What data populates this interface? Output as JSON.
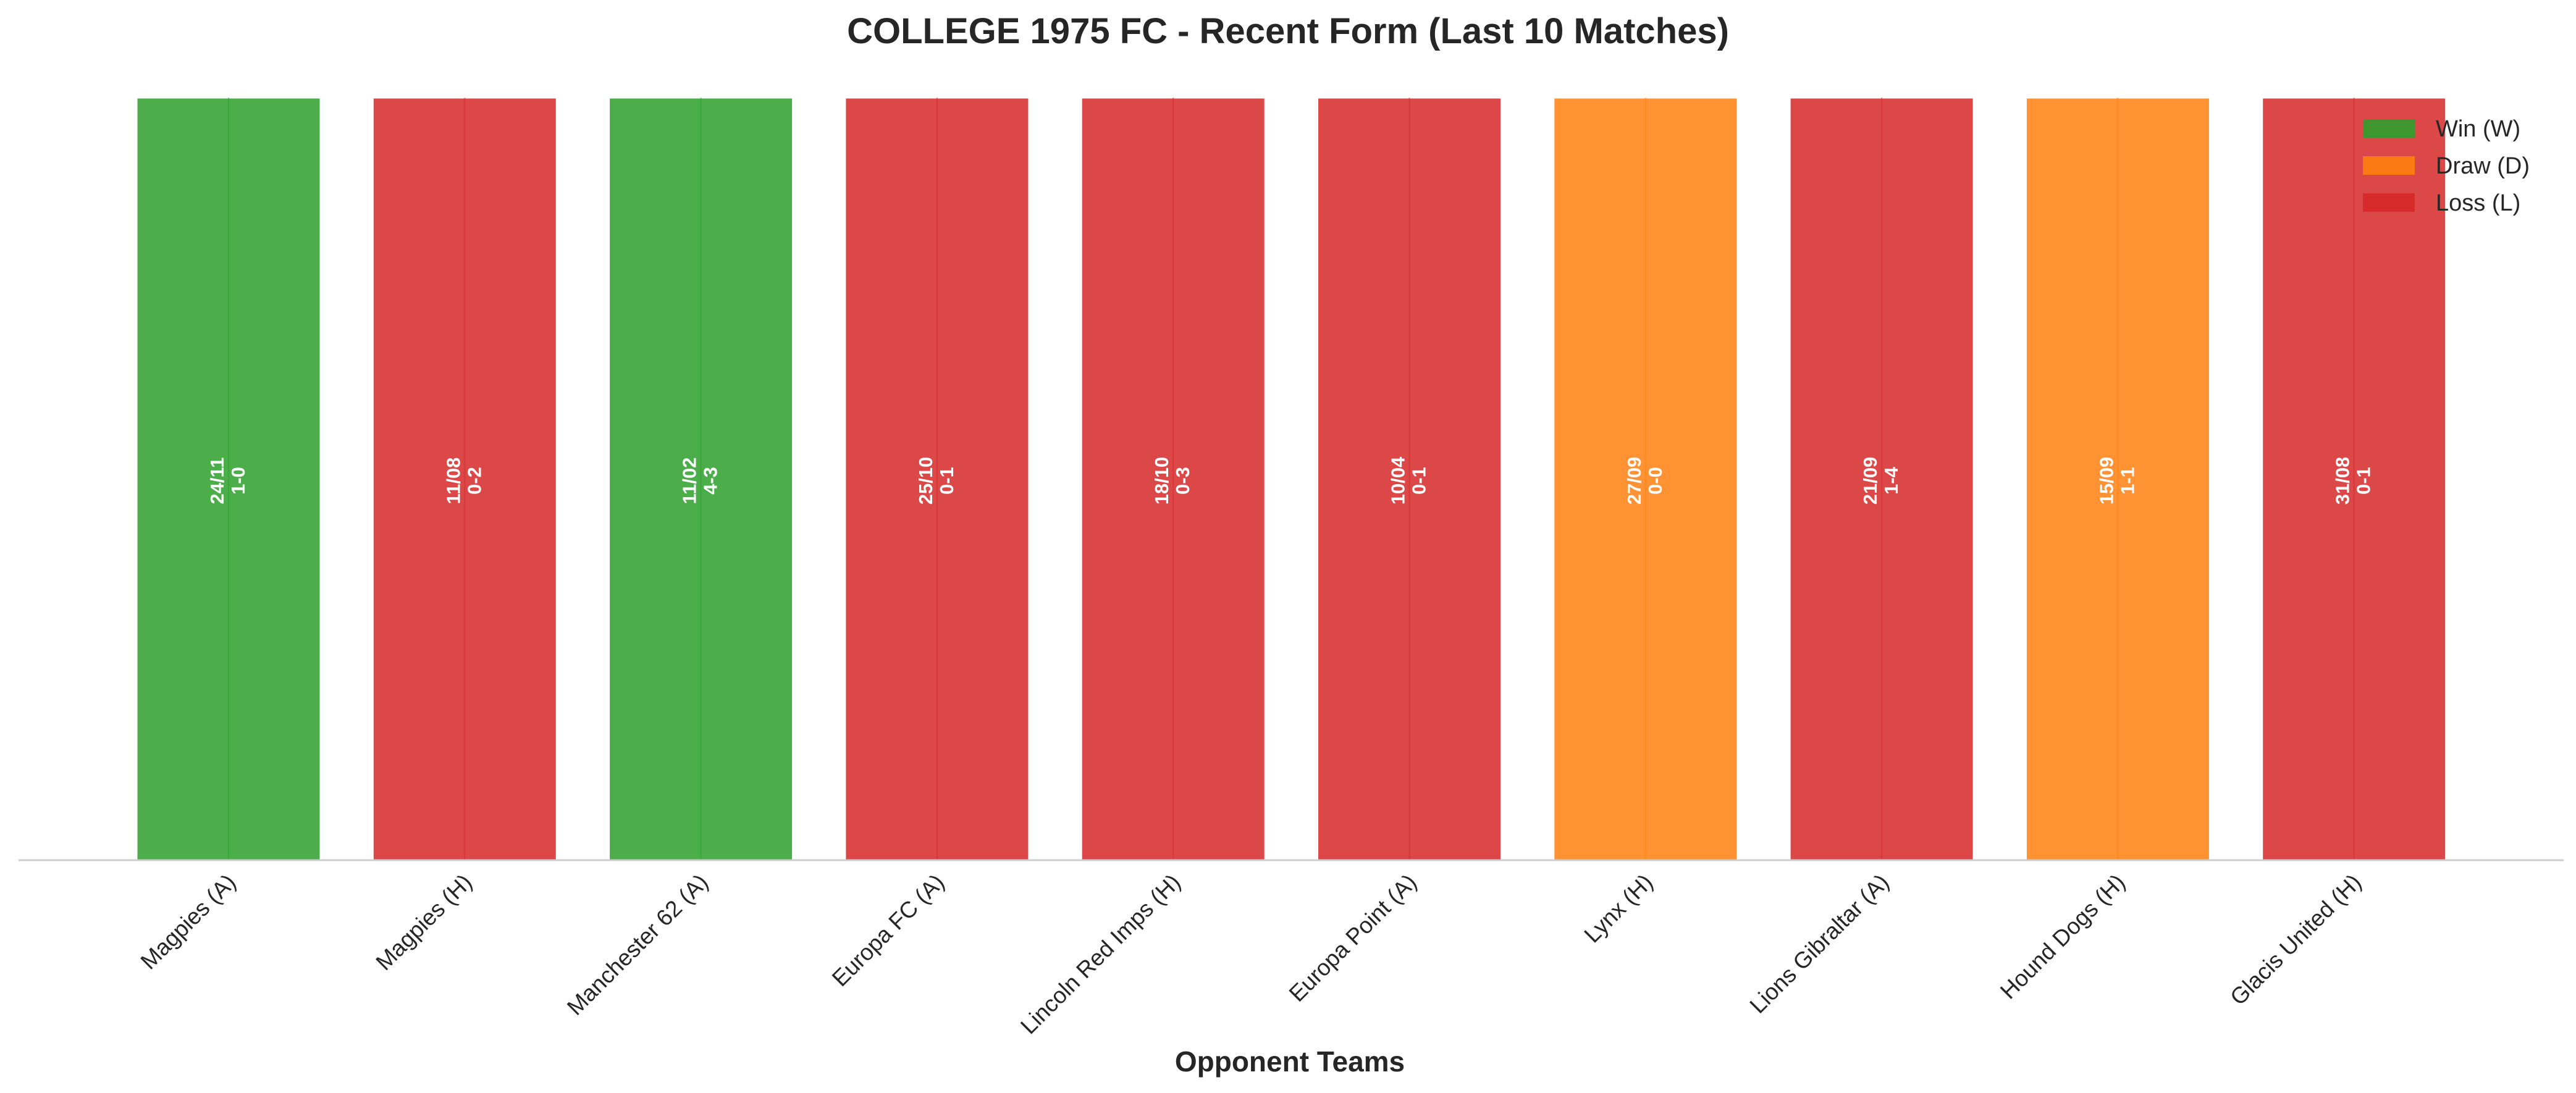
{
  "chart_data": {
    "type": "bar",
    "title": "COLLEGE 1975 FC - Recent Form (Last 10 Matches)",
    "xlabel": "Opponent Teams",
    "ylabel": "",
    "ylim": [
      0,
      1
    ],
    "grid": false,
    "legend_position": "top-right",
    "categories": [
      "Magpies (A)",
      "Magpies (H)",
      "Manchester 62 (A)",
      "Europa FC (A)",
      "Lincoln Red Imps (H)",
      "Europa Point (A)",
      "Lynx (H)",
      "Lions Gibraltar (A)",
      "Hound Dogs (H)",
      "Glacis United (H)"
    ],
    "values": [
      1,
      1,
      1,
      1,
      1,
      1,
      1,
      1,
      1,
      1
    ],
    "results": [
      "W",
      "L",
      "W",
      "L",
      "L",
      "L",
      "D",
      "L",
      "D",
      "L"
    ],
    "dates": [
      "24/11",
      "11/08",
      "11/02",
      "25/10",
      "18/10",
      "10/04",
      "27/09",
      "21/09",
      "15/09",
      "31/08"
    ],
    "scores": [
      "1-0",
      "0-2",
      "4-3",
      "0-1",
      "0-3",
      "0-1",
      "0-0",
      "1-4",
      "1-1",
      "0-1"
    ],
    "legend": [
      {
        "key": "W",
        "label": "Win (W)",
        "color": "#2ca02c"
      },
      {
        "key": "D",
        "label": "Draw (D)",
        "color": "#ff7f0e"
      },
      {
        "key": "L",
        "label": "Loss (L)",
        "color": "#d62728"
      }
    ],
    "colors": {
      "W": "#2ca02c",
      "D": "#ff7f0e",
      "L": "#d62728"
    }
  }
}
